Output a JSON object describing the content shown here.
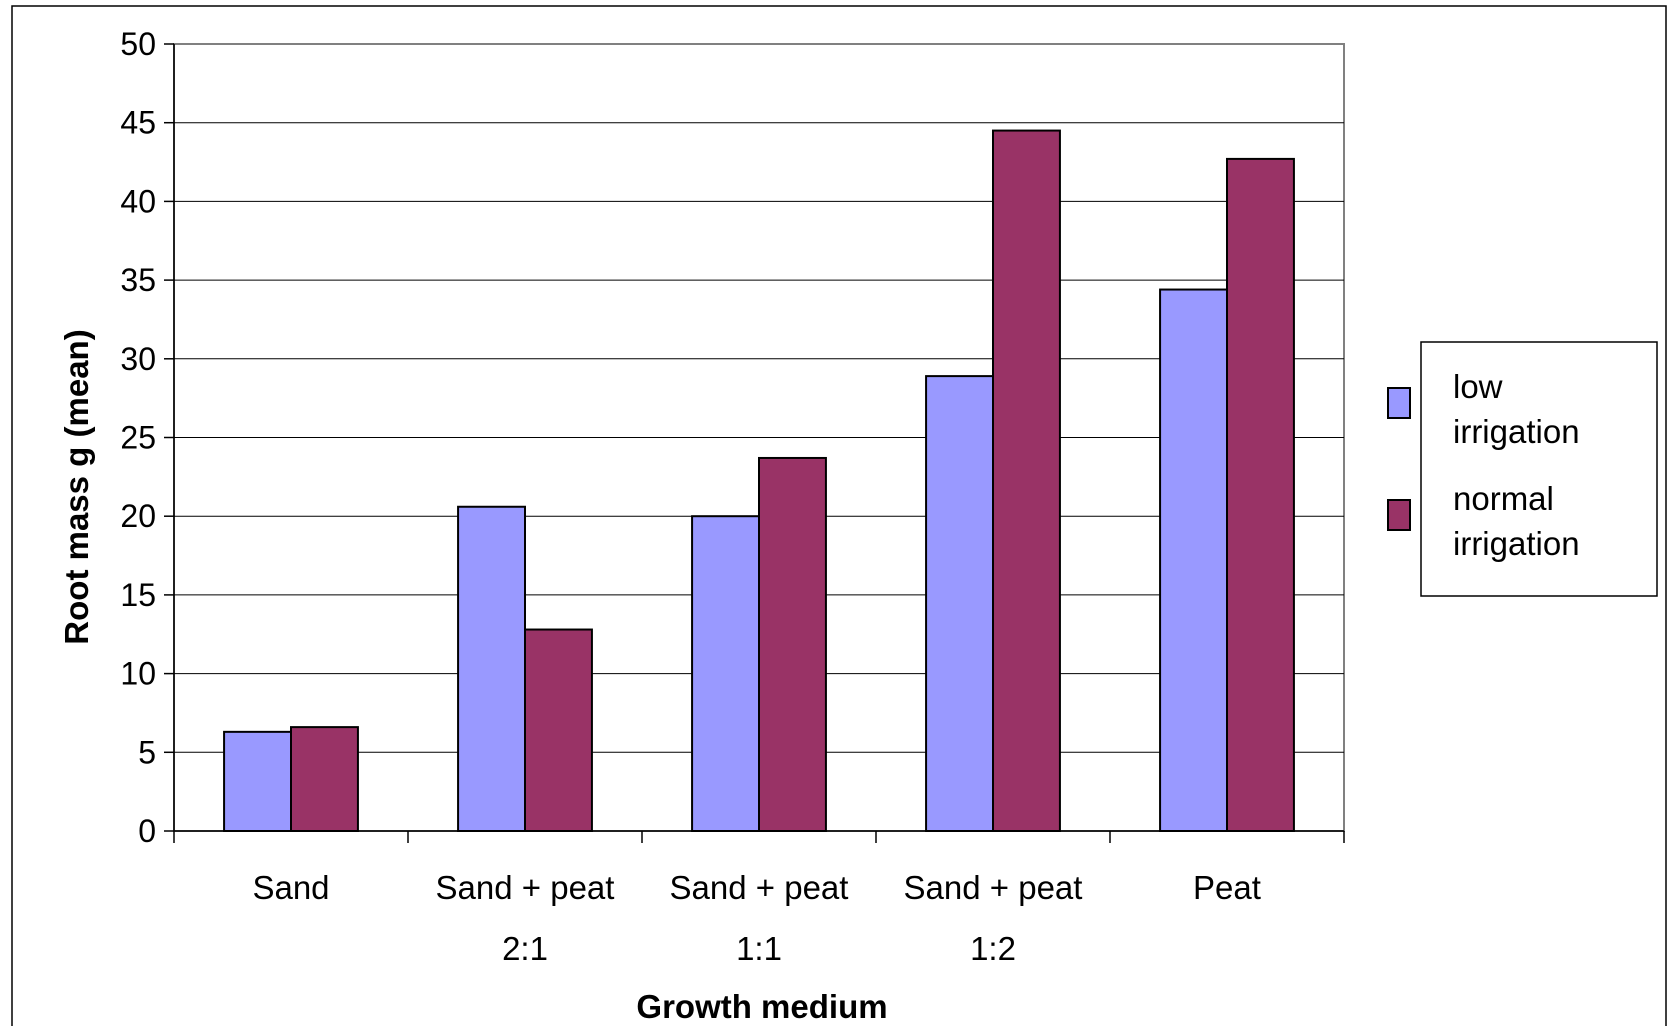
{
  "chart_data": {
    "type": "bar",
    "title": "",
    "xlabel": "Growth medium",
    "ylabel": "Root mass g (mean)",
    "ylim": [
      0,
      50
    ],
    "yticks": [
      0,
      5,
      10,
      15,
      20,
      25,
      30,
      35,
      40,
      45,
      50
    ],
    "grid": true,
    "legend_position": "right",
    "categories": [
      [
        "Sand"
      ],
      [
        "Sand + peat",
        "2:1"
      ],
      [
        "Sand + peat",
        "1:1"
      ],
      [
        "Sand + peat",
        "1:2"
      ],
      [
        "Peat"
      ]
    ],
    "series": [
      {
        "name_lines": [
          "low",
          "irrigation"
        ],
        "color": "#9999ff",
        "values": [
          6.3,
          20.6,
          20.0,
          28.9,
          34.4
        ]
      },
      {
        "name_lines": [
          "normal",
          "irrigation"
        ],
        "color": "#993366",
        "values": [
          6.6,
          12.8,
          23.7,
          44.5,
          42.7
        ]
      }
    ]
  }
}
